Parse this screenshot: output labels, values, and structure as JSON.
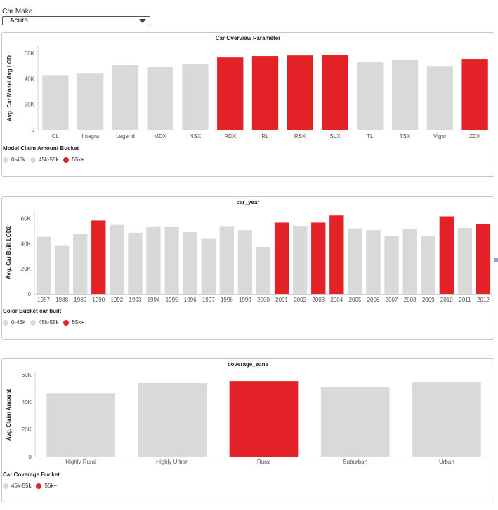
{
  "filter": {
    "label": "Car Make",
    "value": "Acura"
  },
  "colors": {
    "gray": "#d9d9d9",
    "red": "#e32126"
  },
  "legends": [
    {
      "title": "Model Claim Amount Bucket",
      "items": [
        {
          "label": "0-45k",
          "color": "#d9d9d9"
        },
        {
          "label": "45k-55k",
          "color": "#d9d9d9"
        },
        {
          "label": "55k+",
          "color": "#e32126"
        }
      ]
    },
    {
      "title": "Color Bucket car built",
      "items": [
        {
          "label": "0-45k",
          "color": "#d9d9d9"
        },
        {
          "label": "45k-55k",
          "color": "#d9d9d9"
        },
        {
          "label": "55k+",
          "color": "#e32126"
        }
      ]
    },
    {
      "title": "Car Coverage Bucket",
      "items": [
        {
          "label": "45k-55k",
          "color": "#d9d9d9"
        },
        {
          "label": "55k+",
          "color": "#e32126"
        }
      ]
    }
  ],
  "chart_data": [
    {
      "type": "bar",
      "title": "Car Overview Parameter",
      "xlabel": "",
      "ylabel": "Avg. Car Model Avg LOD",
      "ylim": [
        0,
        65000
      ],
      "yticks": [
        0,
        20000,
        40000,
        60000
      ],
      "ytick_labels": [
        "0",
        "20K",
        "40K",
        "60K"
      ],
      "grid": false,
      "categories": [
        "CL",
        "Integra",
        "Legend",
        "MDX",
        "NSX",
        "RDX",
        "RL",
        "RSX",
        "SLX",
        "TL",
        "TSX",
        "Vigor",
        "ZDX"
      ],
      "values": [
        42800,
        44500,
        51000,
        49000,
        51800,
        57200,
        57800,
        58300,
        58500,
        52800,
        55000,
        50000,
        55600
      ],
      "buckets": [
        "0-45k",
        "0-45k",
        "45k-55k",
        "45k-55k",
        "45k-55k",
        "55k+",
        "55k+",
        "55k+",
        "55k+",
        "45k-55k",
        "45k-55k",
        "45k-55k",
        "55k+"
      ]
    },
    {
      "type": "bar",
      "title": "car_year",
      "xlabel": "",
      "ylabel": "Avg. Car Built LOD2",
      "ylim": [
        0,
        66000
      ],
      "yticks": [
        0,
        20000,
        40000,
        60000
      ],
      "ytick_labels": [
        "0",
        "20K",
        "40K",
        "60K"
      ],
      "grid": false,
      "categories": [
        "1987",
        "1988",
        "1989",
        "1990",
        "1992",
        "1993",
        "1994",
        "1995",
        "1996",
        "1997",
        "1998",
        "1999",
        "2000",
        "2001",
        "2002",
        "2003",
        "2004",
        "2005",
        "2006",
        "2007",
        "2008",
        "2009",
        "2010",
        "2011",
        "2012"
      ],
      "values": [
        45500,
        38800,
        48000,
        58500,
        55000,
        48800,
        53800,
        53200,
        49200,
        44500,
        54000,
        50800,
        37500,
        56800,
        54200,
        56800,
        62500,
        52200,
        50800,
        46000,
        51500,
        46000,
        61800,
        52500,
        55500
      ],
      "buckets": [
        "45k-55k",
        "0-45k",
        "45k-55k",
        "55k+",
        "45k-55k",
        "45k-55k",
        "45k-55k",
        "45k-55k",
        "45k-55k",
        "0-45k",
        "45k-55k",
        "45k-55k",
        "0-45k",
        "55k+",
        "45k-55k",
        "55k+",
        "55k+",
        "45k-55k",
        "45k-55k",
        "45k-55k",
        "45k-55k",
        "45k-55k",
        "55k+",
        "45k-55k",
        "55k+"
      ]
    },
    {
      "type": "bar",
      "title": "coverage_zone",
      "xlabel": "",
      "ylabel": "Avg. Claim Amount",
      "ylim": [
        0,
        61000
      ],
      "yticks": [
        0,
        20000,
        40000,
        60000
      ],
      "ytick_labels": [
        "0",
        "20K",
        "40K",
        "60K"
      ],
      "grid": false,
      "categories": [
        "Highly Rural",
        "Highly Urban",
        "Rural",
        "Suburban",
        "Urban"
      ],
      "values": [
        46500,
        53800,
        55300,
        50800,
        54300
      ],
      "buckets": [
        "45k-55k",
        "45k-55k",
        "55k+",
        "45k-55k",
        "45k-55k"
      ]
    }
  ]
}
